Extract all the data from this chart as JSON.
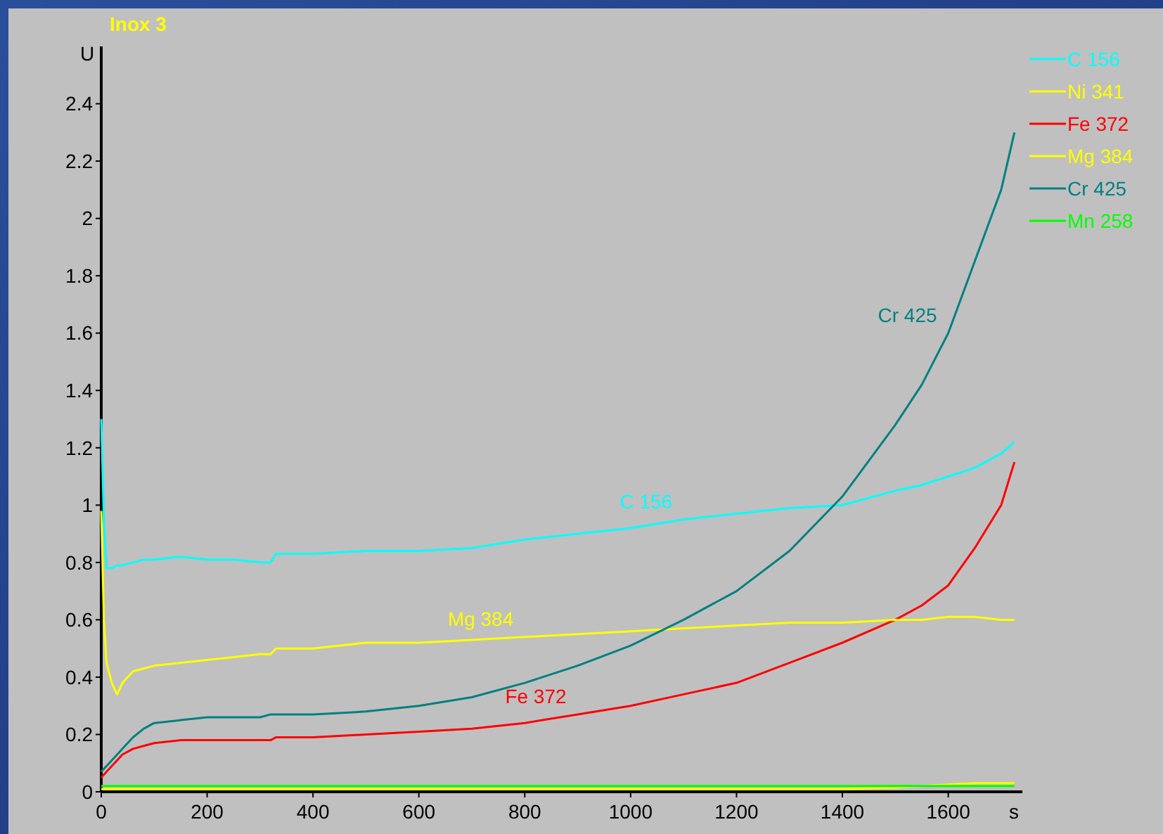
{
  "chart_data": {
    "type": "line",
    "title": "Inox 3",
    "xlabel": "s",
    "ylabel": "U",
    "xlim": [
      0,
      1740
    ],
    "ylim": [
      0,
      2.6
    ],
    "xticks": [
      0,
      200,
      400,
      600,
      800,
      1000,
      1200,
      1400,
      1600
    ],
    "yticks": [
      0,
      0.2,
      0.4,
      0.6,
      0.8,
      1,
      1.2,
      1.4,
      1.6,
      1.8,
      2,
      2.2,
      2.4
    ],
    "grid": false,
    "legend": "top right",
    "marker": "none",
    "line_style": "solid",
    "x": [
      0,
      5,
      10,
      20,
      30,
      40,
      60,
      80,
      100,
      150,
      200,
      250,
      300,
      320,
      330,
      400,
      500,
      600,
      700,
      800,
      900,
      1000,
      1100,
      1200,
      1300,
      1400,
      1500,
      1550,
      1600,
      1650,
      1700,
      1725
    ],
    "series": [
      {
        "name": "C 156",
        "color": "#00ffff",
        "values": [
          1.3,
          0.95,
          0.78,
          0.78,
          0.79,
          0.79,
          0.8,
          0.81,
          0.81,
          0.82,
          0.81,
          0.81,
          0.8,
          0.8,
          0.83,
          0.83,
          0.84,
          0.84,
          0.85,
          0.88,
          0.9,
          0.92,
          0.95,
          0.97,
          0.99,
          1.0,
          1.05,
          1.07,
          1.1,
          1.13,
          1.18,
          1.22
        ]
      },
      {
        "name": "Ni 341",
        "color": "#ffff00",
        "values": [
          0.01,
          0.01,
          0.01,
          0.01,
          0.01,
          0.01,
          0.01,
          0.01,
          0.01,
          0.01,
          0.01,
          0.01,
          0.01,
          0.01,
          0.01,
          0.01,
          0.01,
          0.01,
          0.01,
          0.01,
          0.01,
          0.01,
          0.01,
          0.01,
          0.01,
          0.01,
          0.015,
          0.02,
          0.025,
          0.03,
          0.03,
          0.03
        ]
      },
      {
        "name": "Fe 372",
        "color": "#ff0000",
        "values": [
          0.05,
          0.06,
          0.07,
          0.09,
          0.11,
          0.13,
          0.15,
          0.16,
          0.17,
          0.18,
          0.18,
          0.18,
          0.18,
          0.18,
          0.19,
          0.19,
          0.2,
          0.21,
          0.22,
          0.24,
          0.27,
          0.3,
          0.34,
          0.38,
          0.45,
          0.52,
          0.6,
          0.65,
          0.72,
          0.85,
          1.0,
          1.15
        ]
      },
      {
        "name": "Mg 384",
        "color": "#ffff00",
        "values": [
          0.98,
          0.6,
          0.45,
          0.38,
          0.34,
          0.38,
          0.42,
          0.43,
          0.44,
          0.45,
          0.46,
          0.47,
          0.48,
          0.48,
          0.5,
          0.5,
          0.52,
          0.52,
          0.53,
          0.54,
          0.55,
          0.56,
          0.57,
          0.58,
          0.59,
          0.59,
          0.6,
          0.6,
          0.61,
          0.61,
          0.6,
          0.6
        ]
      },
      {
        "name": "Cr 425",
        "color": "#008080",
        "values": [
          0.07,
          0.08,
          0.09,
          0.11,
          0.13,
          0.15,
          0.19,
          0.22,
          0.24,
          0.25,
          0.26,
          0.26,
          0.26,
          0.27,
          0.27,
          0.27,
          0.28,
          0.3,
          0.33,
          0.38,
          0.44,
          0.51,
          0.6,
          0.7,
          0.84,
          1.03,
          1.28,
          1.42,
          1.6,
          1.85,
          2.1,
          2.3
        ]
      },
      {
        "name": "Mn 258",
        "color": "#00ff00",
        "values": [
          0.02,
          0.02,
          0.02,
          0.02,
          0.02,
          0.02,
          0.02,
          0.02,
          0.02,
          0.02,
          0.02,
          0.02,
          0.02,
          0.02,
          0.02,
          0.02,
          0.02,
          0.02,
          0.02,
          0.02,
          0.02,
          0.02,
          0.02,
          0.02,
          0.02,
          0.02,
          0.02,
          0.02,
          0.02,
          0.02,
          0.02,
          0.02
        ]
      }
    ],
    "annotations": [
      {
        "text": "C 156",
        "x": 1100,
        "y": 0.95
      },
      {
        "text": "Mg 384",
        "x": 800,
        "y": 0.54
      },
      {
        "text": "Fe 372",
        "x": 900,
        "y": 0.27
      },
      {
        "text": "Cr 425",
        "x": 1600,
        "y": 1.6
      }
    ]
  }
}
